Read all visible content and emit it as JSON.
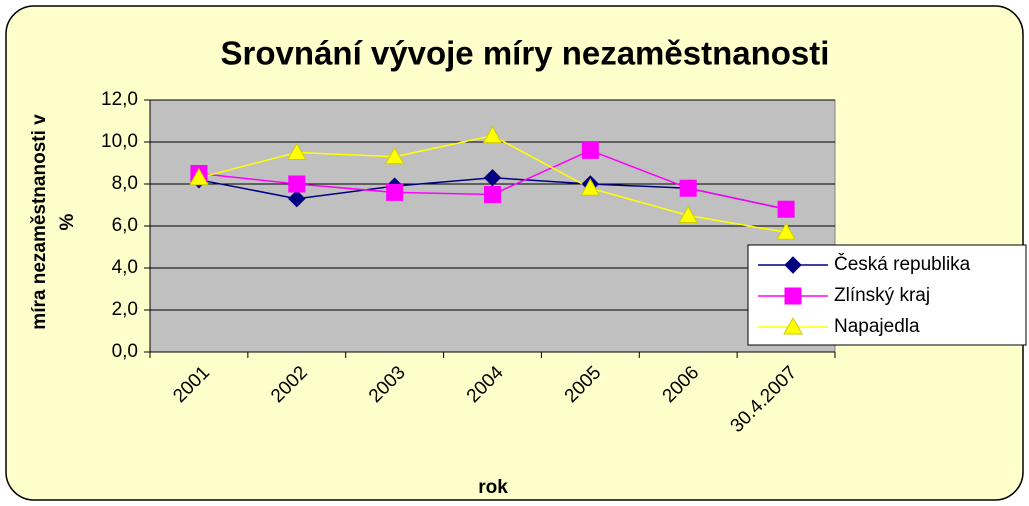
{
  "chart_data": {
    "type": "line",
    "title": "Srovnání vývoje míry nezaměstnanosti",
    "y_label": [
      "míra nezaměstnanosti v",
      "%"
    ],
    "x_label": "rok",
    "categories": [
      "2001",
      "2002",
      "2003",
      "2004",
      "2005",
      "2006",
      "30.4.2007"
    ],
    "series": [
      {
        "name": "Česká republika",
        "color": "#000080",
        "marker": "diamond",
        "values": [
          8.2,
          7.3,
          7.9,
          8.3,
          8.0,
          7.8,
          6.8
        ]
      },
      {
        "name": "Zlínský kraj",
        "color": "#ff00ff",
        "marker": "square",
        "values": [
          8.5,
          8.0,
          7.6,
          7.5,
          9.6,
          7.8,
          6.8
        ]
      },
      {
        "name": "Napajedla",
        "color": "#ffff00",
        "marker": "triangle",
        "values": [
          8.3,
          9.5,
          9.3,
          10.3,
          7.8,
          6.5,
          5.7
        ]
      }
    ],
    "ylim": [
      0,
      12
    ],
    "yticks": [
      {
        "value": 0,
        "label": "0,0"
      },
      {
        "value": 2,
        "label": "2,0"
      },
      {
        "value": 4,
        "label": "4,0"
      },
      {
        "value": 6,
        "label": "6,0"
      },
      {
        "value": 8,
        "label": "8,0"
      },
      {
        "value": 10,
        "label": "10,0"
      },
      {
        "value": 12,
        "label": "12,0"
      }
    ],
    "grid": true,
    "legend": "right"
  }
}
